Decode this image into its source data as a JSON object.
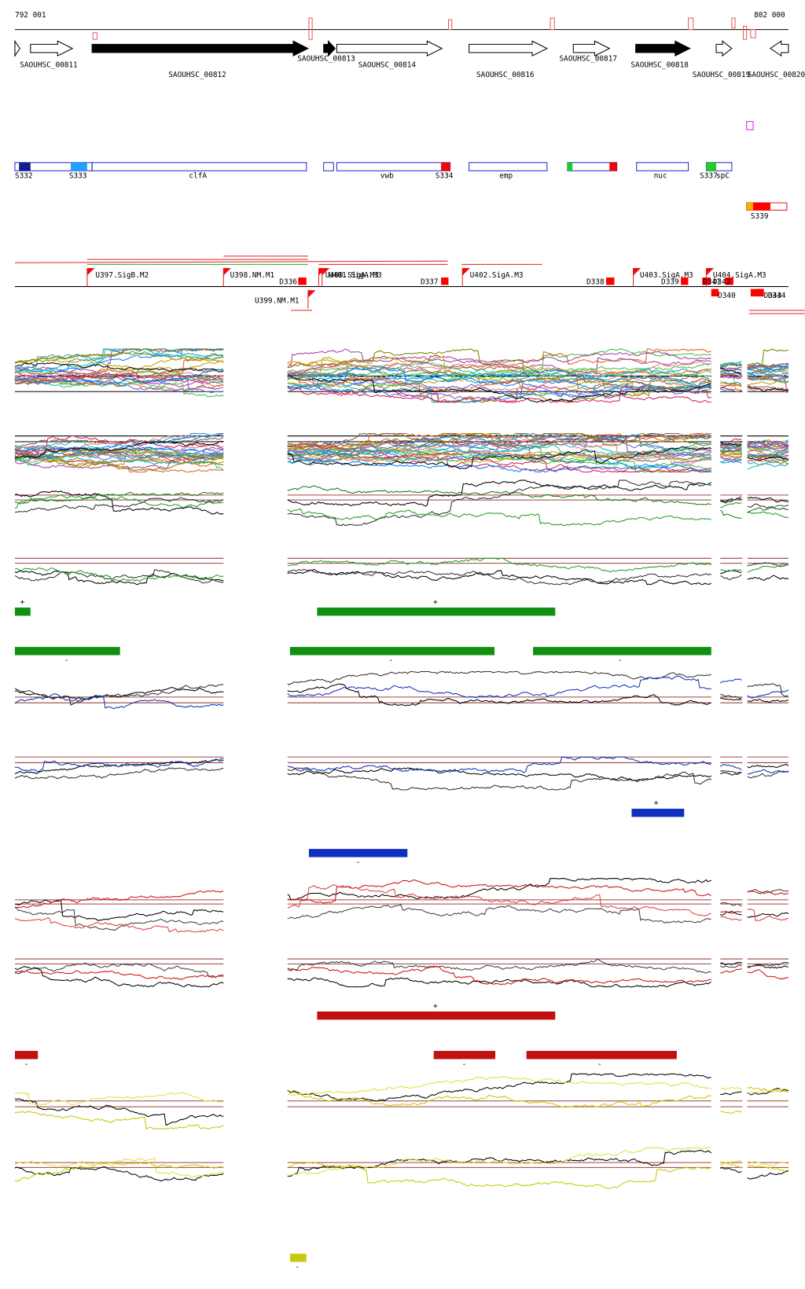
{
  "header": {
    "start": "792 001",
    "end": "802 000"
  },
  "genes": [
    "SAOUHSC_00811",
    "SAOUHSC_00812",
    "SAOUHSC_00813",
    "SAOUHSC_00814",
    "SAOUHSC_00816",
    "SAOUHSC_00817",
    "SAOUHSC_00818",
    "SAOUHSC_00819",
    "SAOUHSC_00820"
  ],
  "annotations": [
    "S332",
    "S333",
    "clfA",
    "vwb",
    "S334",
    "emp",
    "nuc",
    "S337",
    "spC",
    "S339"
  ],
  "promoters": [
    "U397.SigB.M2",
    "U398.NM.M1",
    "U399.NM.M1",
    "U400.SigA.M3",
    "U401.SigA.M3",
    "U402.SigA.M3",
    "U403.SigA.M3",
    "U404.SigA.M3"
  ],
  "terminators": [
    "D336",
    "D337",
    "D338",
    "D339",
    "D340",
    "D341",
    "D342",
    "D343",
    "D344"
  ],
  "strand_labels": [
    "+",
    "+",
    "-",
    "-",
    "-",
    "+",
    "-",
    "+",
    "-",
    "-",
    "-",
    "-"
  ]
}
